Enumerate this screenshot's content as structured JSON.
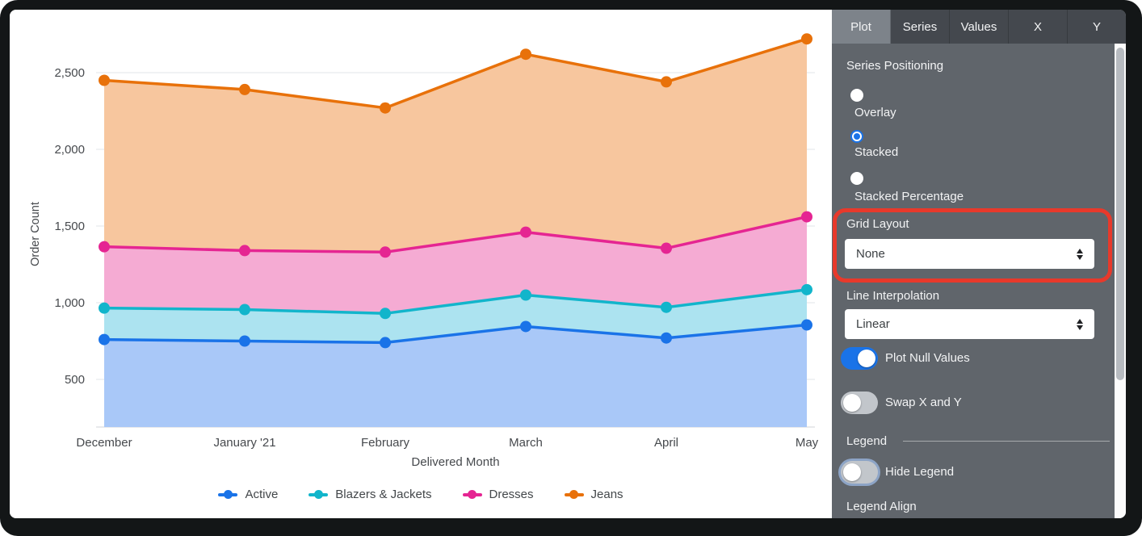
{
  "panel": {
    "tabs": [
      {
        "label": "Plot",
        "active": true
      },
      {
        "label": "Series",
        "active": false
      },
      {
        "label": "Values",
        "active": false
      },
      {
        "label": "X",
        "active": false
      },
      {
        "label": "Y",
        "active": false
      }
    ],
    "series_positioning": {
      "label": "Series Positioning",
      "options": [
        {
          "label": "Overlay",
          "selected": false
        },
        {
          "label": "Stacked",
          "selected": true
        },
        {
          "label": "Stacked Percentage",
          "selected": false
        }
      ]
    },
    "grid_layout": {
      "label": "Grid Layout",
      "value": "None"
    },
    "line_interpolation": {
      "label": "Line Interpolation",
      "value": "Linear"
    },
    "plot_null_values": {
      "label": "Plot Null Values",
      "on": true
    },
    "swap_x_y": {
      "label": "Swap X and Y",
      "on": false
    },
    "legend_section": {
      "label": "Legend",
      "hide_legend": {
        "label": "Hide Legend",
        "on": false
      },
      "align_label": "Legend Align"
    }
  },
  "ui_colors": {
    "toggle_on": "#1a73e8",
    "highlight_red": "#e8392b",
    "panel_bg": "#60656b",
    "tabbar_bg": "#44484e",
    "active_tab_bg": "#7d838a"
  },
  "chart_data": {
    "type": "area",
    "stacking": "stacked",
    "x": [
      "December",
      "January '21",
      "February",
      "March",
      "April",
      "May"
    ],
    "xlabel": "Delivered Month",
    "ylabel": "Order Count",
    "yticks": [
      500,
      1000,
      1500,
      2000,
      2500
    ],
    "ylim": [
      0,
      2800
    ],
    "grid": "horizontal",
    "legend_position": "bottom",
    "series": [
      {
        "name": "Active",
        "line_color": "#1a73e8",
        "fill_color": "#a9c8f8",
        "values": [
          760,
          750,
          740,
          845,
          770,
          855
        ]
      },
      {
        "name": "Blazers & Jackets",
        "line_color": "#12b5cb",
        "fill_color": "#ace3f0",
        "values": [
          205,
          205,
          190,
          205,
          200,
          230
        ]
      },
      {
        "name": "Dresses",
        "line_color": "#e52592",
        "fill_color": "#f5abd3",
        "values": [
          400,
          385,
          400,
          410,
          385,
          475
        ]
      },
      {
        "name": "Jeans",
        "line_color": "#e8710a",
        "fill_color": "#f7c69e",
        "values": [
          1085,
          1050,
          940,
          1160,
          1085,
          1160
        ]
      }
    ],
    "stacked_totals_note": "cumulative tops: Active 760/750/740/845/770/855; +Blazers 965/955/930/1050/970/1085; +Dresses 1365/1340/1330/1460/1355/1560; +Jeans 2450/2390/2270/2620/2440/2720"
  }
}
